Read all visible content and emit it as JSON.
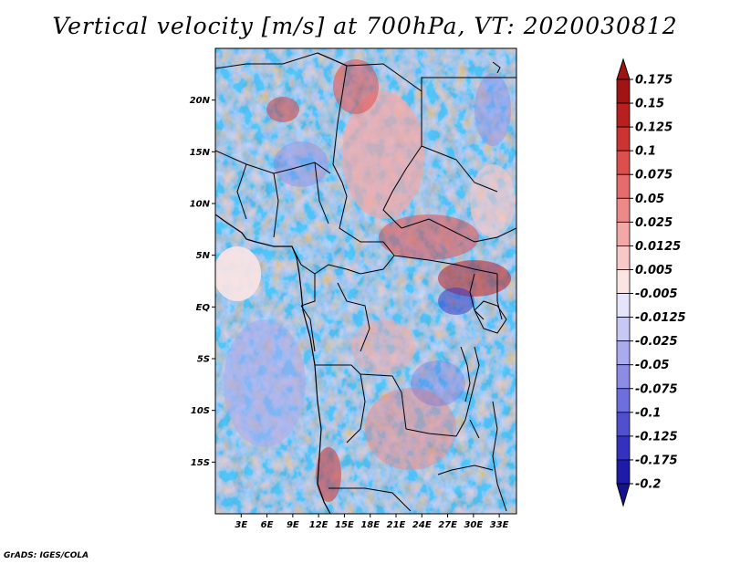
{
  "title": "Vertical velocity [m/s] at 700hPa, VT: 2020030812",
  "credit": "GrADS: IGES/COLA",
  "map": {
    "lon_range": [
      0,
      35
    ],
    "lat_range": [
      -20,
      25
    ],
    "lat_ticks": [
      {
        "value": 20,
        "label": "20N"
      },
      {
        "value": 15,
        "label": "15N"
      },
      {
        "value": 10,
        "label": "10N"
      },
      {
        "value": 5,
        "label": "5N"
      },
      {
        "value": 0,
        "label": "EQ"
      },
      {
        "value": -5,
        "label": "5S"
      },
      {
        "value": -10,
        "label": "10S"
      },
      {
        "value": -15,
        "label": "15S"
      }
    ],
    "lon_ticks": [
      {
        "value": 3,
        "label": "3E"
      },
      {
        "value": 6,
        "label": "6E"
      },
      {
        "value": 9,
        "label": "9E"
      },
      {
        "value": 12,
        "label": "12E"
      },
      {
        "value": 15,
        "label": "15E"
      },
      {
        "value": 18,
        "label": "18E"
      },
      {
        "value": 21,
        "label": "21E"
      },
      {
        "value": 24,
        "label": "24E"
      },
      {
        "value": 27,
        "label": "27E"
      },
      {
        "value": 30,
        "label": "30E"
      },
      {
        "value": 33,
        "label": "33E"
      }
    ]
  },
  "colorbar": {
    "levels": [
      {
        "label": "0.175",
        "color": "#a01414"
      },
      {
        "label": "0.15",
        "color": "#b82020"
      },
      {
        "label": "0.125",
        "color": "#cc3333"
      },
      {
        "label": "0.1",
        "color": "#dc4f4f"
      },
      {
        "label": "0.075",
        "color": "#e56c6c"
      },
      {
        "label": "0.05",
        "color": "#ec8a8a"
      },
      {
        "label": "0.025",
        "color": "#f3a8a8"
      },
      {
        "label": "0.0125",
        "color": "#f8c8c8"
      },
      {
        "label": "0.005",
        "color": "#fce4e4"
      },
      {
        "label": "-0.005",
        "color": "#ffffff"
      },
      {
        "label": "-0.0125",
        "color": "#e4e4fb"
      },
      {
        "label": "-0.025",
        "color": "#c8c8f5"
      },
      {
        "label": "-0.05",
        "color": "#aaaaee"
      },
      {
        "label": "-0.075",
        "color": "#8c8ce6"
      },
      {
        "label": "-0.1",
        "color": "#6e6edc"
      },
      {
        "label": "-0.125",
        "color": "#5050ce"
      },
      {
        "label": "-0.175",
        "color": "#3232be"
      },
      {
        "label": "-0.2",
        "color": "#1c1ca8"
      }
    ],
    "top_cap_color": "#a01414",
    "bottom_cap_color": "#14148c"
  }
}
